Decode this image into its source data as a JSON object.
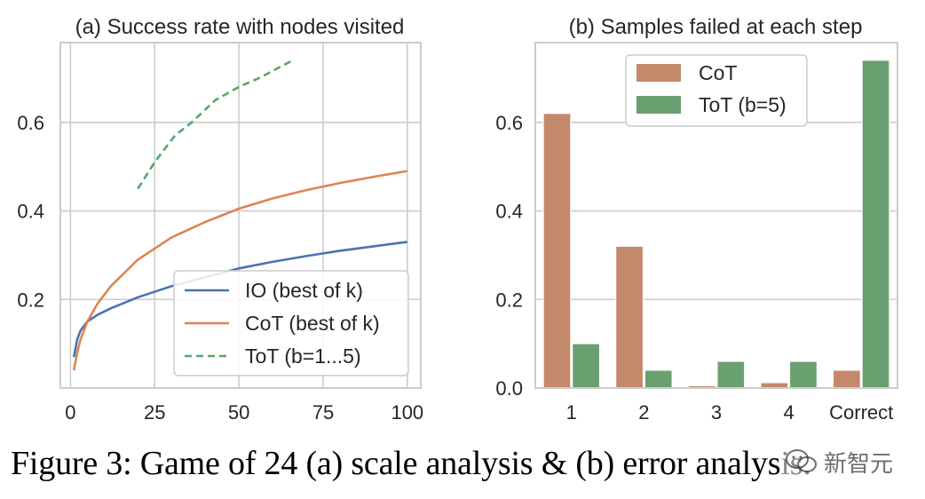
{
  "caption": "Figure 3: Game of 24 (a) scale analysis & (b) error analysis.",
  "watermark": {
    "text": "新智元",
    "icon": "wechat-logo-icon"
  },
  "colors": {
    "io": "#4c72b0",
    "cot": "#dd8452",
    "tot": "#55a868",
    "cot_bar": "#c4896a",
    "tot_bar": "#6a9f6f",
    "grid": "#cccccc",
    "axis": "#cccccc",
    "text": "#262626"
  },
  "chart_data": [
    {
      "type": "line",
      "title": "(a) Success rate with nodes visited",
      "xlabel": "",
      "ylabel": "",
      "xlim": [
        -3,
        104
      ],
      "ylim": [
        0,
        0.78
      ],
      "xticks": [
        0,
        25,
        50,
        75,
        100
      ],
      "xtick_labels": [
        "0",
        "25",
        "50",
        "75",
        "100"
      ],
      "yticks": [
        0.2,
        0.4,
        0.6
      ],
      "ytick_labels": [
        "0.2",
        "0.4",
        "0.6"
      ],
      "grid": true,
      "legend_position": "lower right",
      "series": [
        {
          "name": "IO (best of k)",
          "style": "solid",
          "x": [
            1,
            2,
            3,
            5,
            8,
            12,
            20,
            30,
            40,
            50,
            60,
            70,
            80,
            90,
            100
          ],
          "y": [
            0.07,
            0.11,
            0.13,
            0.15,
            0.165,
            0.18,
            0.205,
            0.23,
            0.25,
            0.27,
            0.285,
            0.298,
            0.31,
            0.32,
            0.33
          ]
        },
        {
          "name": "CoT (best of k)",
          "style": "solid",
          "x": [
            1,
            2,
            3,
            5,
            8,
            12,
            20,
            30,
            40,
            50,
            60,
            70,
            80,
            90,
            100
          ],
          "y": [
            0.04,
            0.08,
            0.11,
            0.15,
            0.19,
            0.23,
            0.29,
            0.34,
            0.375,
            0.405,
            0.428,
            0.447,
            0.463,
            0.477,
            0.49
          ]
        },
        {
          "name": "ToT (b=1...5)",
          "style": "dashed",
          "x": [
            20,
            25,
            31,
            36,
            43,
            50,
            56,
            61,
            66
          ],
          "y": [
            0.45,
            0.51,
            0.57,
            0.6,
            0.65,
            0.68,
            0.7,
            0.72,
            0.74
          ]
        }
      ]
    },
    {
      "type": "bar",
      "title": "(b) Samples failed at each step",
      "xlabel": "",
      "ylabel": "",
      "categories": [
        "1",
        "2",
        "3",
        "4",
        "Correct"
      ],
      "ylim": [
        0,
        0.78
      ],
      "yticks": [
        0.0,
        0.2,
        0.4,
        0.6
      ],
      "ytick_labels": [
        "0.0",
        "0.2",
        "0.4",
        "0.6"
      ],
      "grid": true,
      "legend_position": "upper center",
      "series": [
        {
          "name": "CoT",
          "values": [
            0.62,
            0.32,
            0.005,
            0.012,
            0.04
          ]
        },
        {
          "name": "ToT (b=5)",
          "values": [
            0.1,
            0.04,
            0.06,
            0.06,
            0.74
          ]
        }
      ]
    }
  ]
}
